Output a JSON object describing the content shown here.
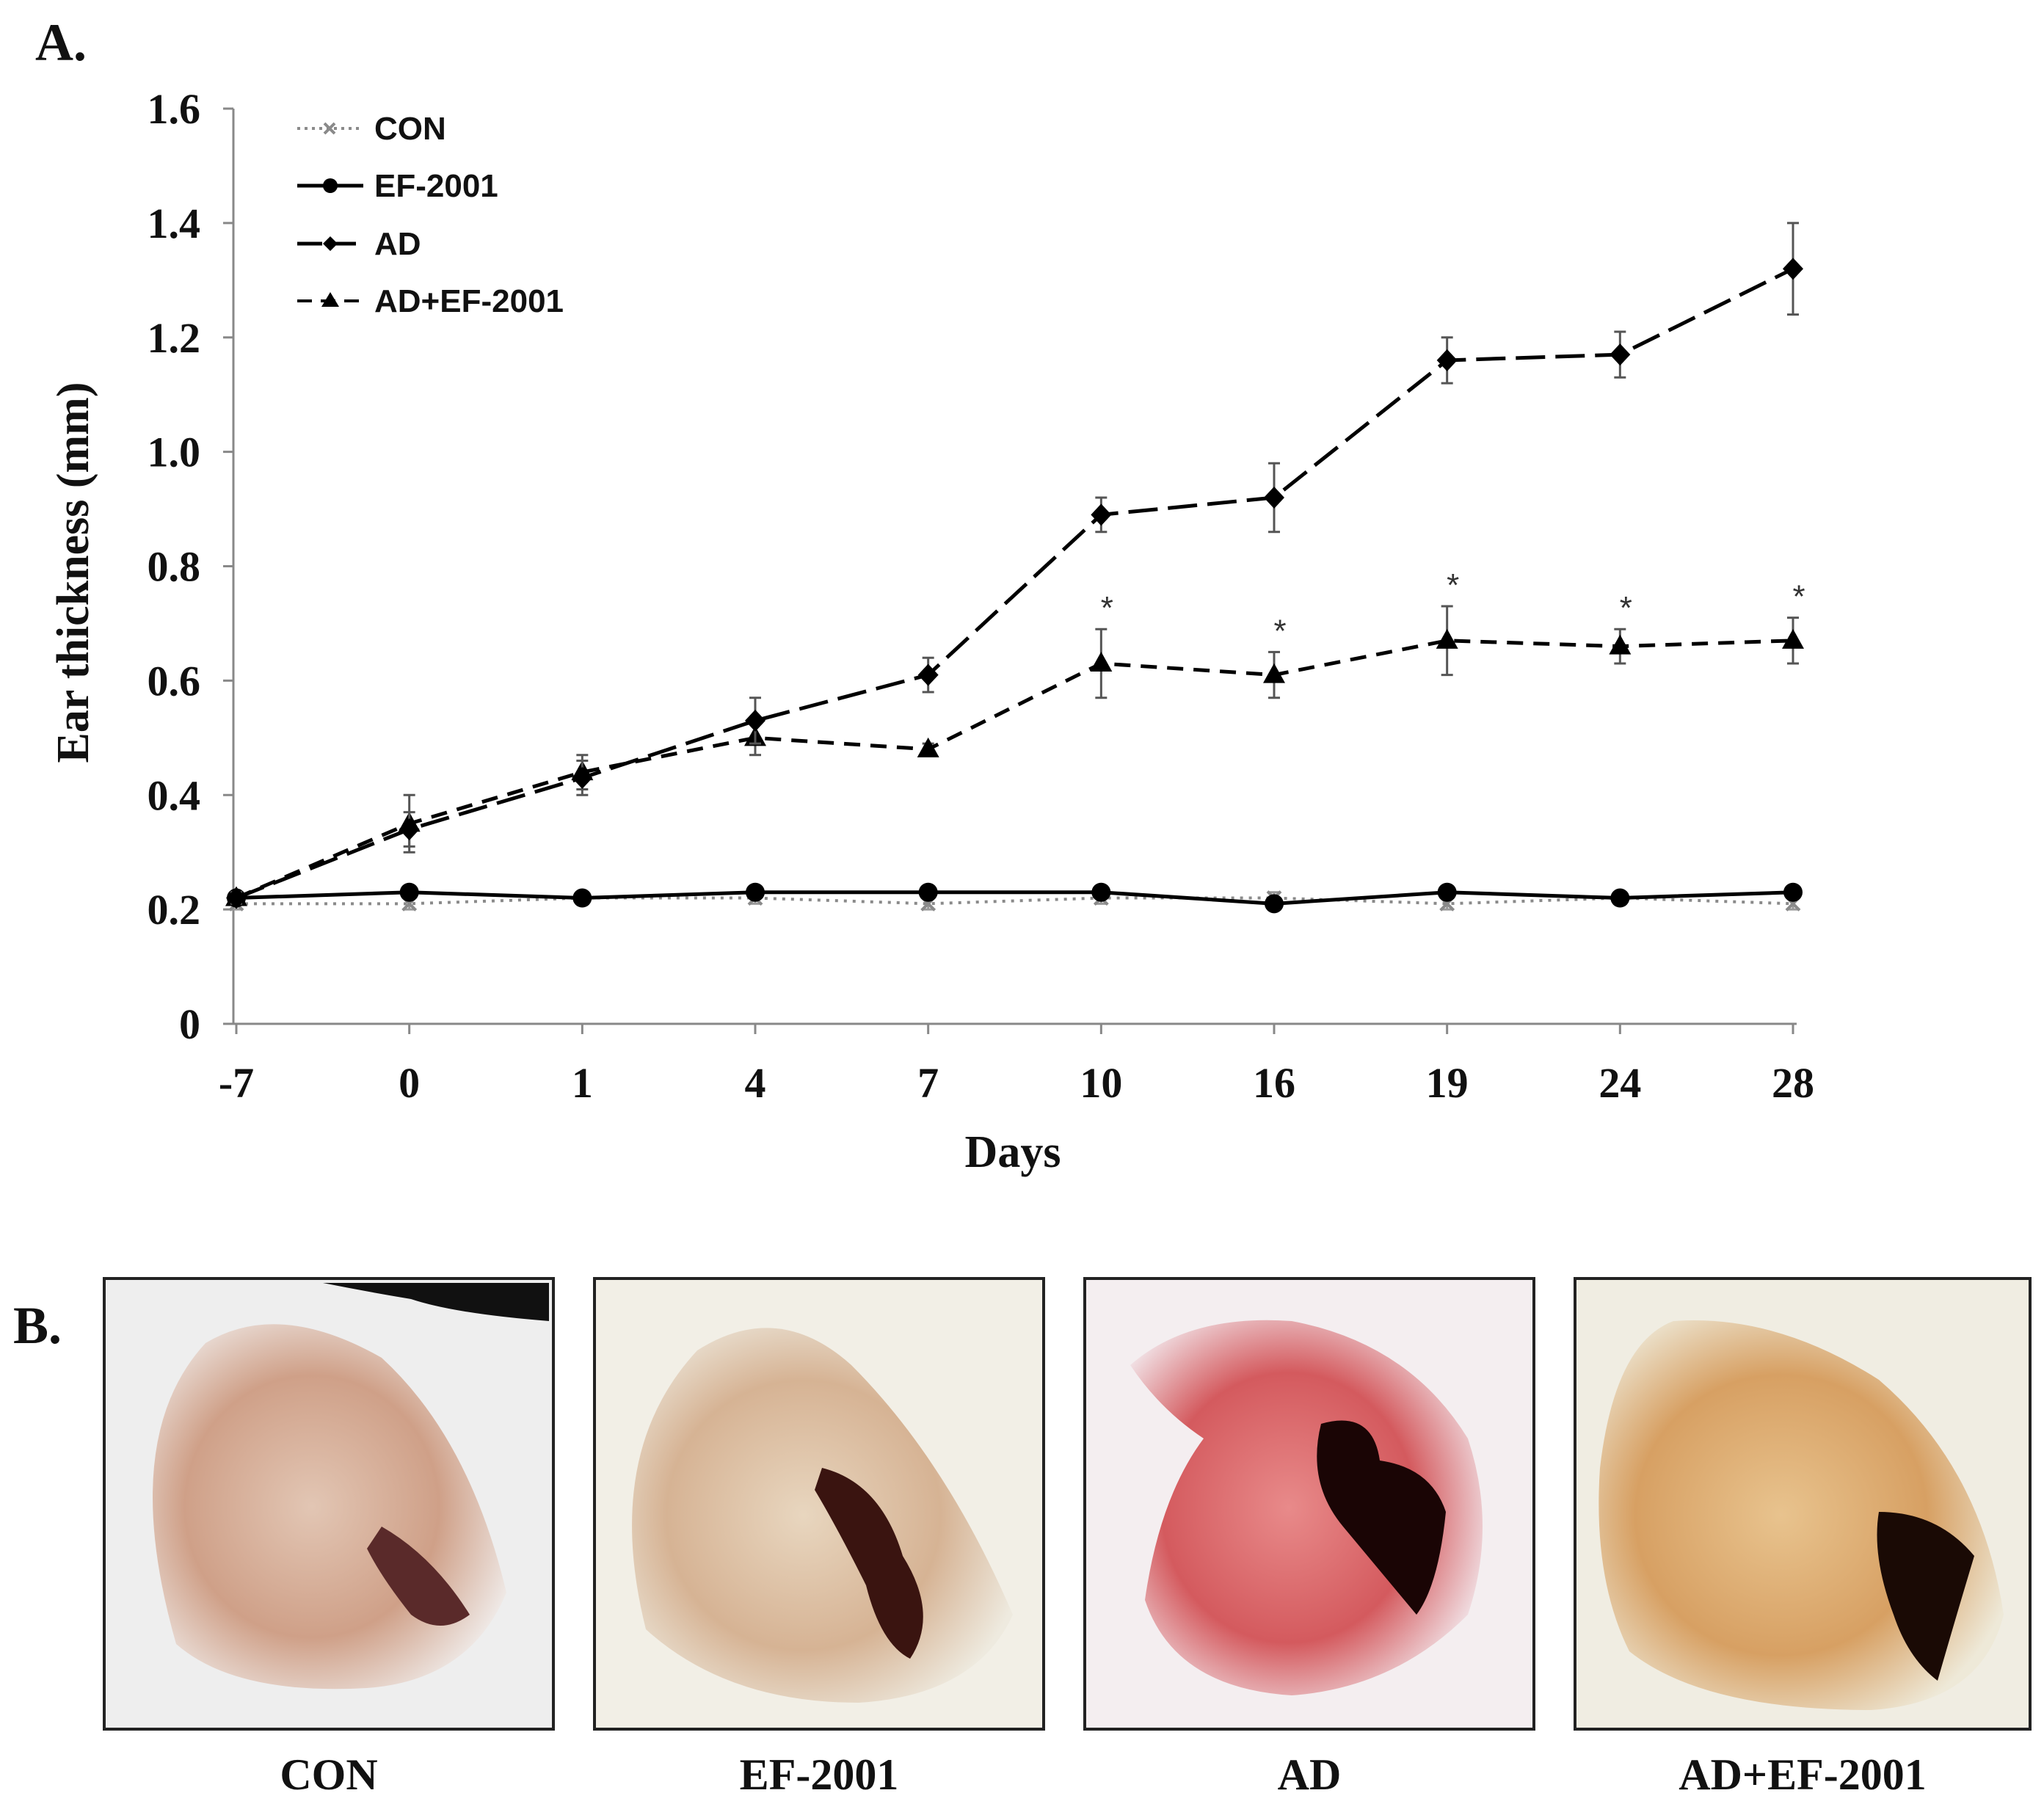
{
  "panel_a_label": "A.",
  "panel_b_label": "B.",
  "chart_data": {
    "type": "line",
    "title": "",
    "xlabel": "Days",
    "ylabel": "Ear thickness (mm)",
    "categories": [
      "-7",
      "0",
      "1",
      "4",
      "7",
      "10",
      "16",
      "19",
      "24",
      "28"
    ],
    "ylim": [
      0,
      1.6
    ],
    "yticks": [
      "0",
      "0.2",
      "0.4",
      "0.6",
      "0.8",
      "1.0",
      "1.2",
      "1.4",
      "1.6"
    ],
    "grid": false,
    "legend_position": "top-left",
    "series": [
      {
        "name": "CON",
        "values": [
          0.21,
          0.21,
          0.22,
          0.22,
          0.21,
          0.22,
          0.22,
          0.21,
          0.22,
          0.21
        ],
        "errors": [
          0.01,
          0.01,
          0.01,
          0.01,
          0.01,
          0.01,
          0.01,
          0.01,
          0.01,
          0.01
        ],
        "line": "dotted",
        "marker": "x",
        "color": "#8a8a8a"
      },
      {
        "name": "EF-2001",
        "values": [
          0.22,
          0.23,
          0.22,
          0.23,
          0.23,
          0.23,
          0.21,
          0.23,
          0.22,
          0.23
        ],
        "errors": [
          0.01,
          0.01,
          0.01,
          0.01,
          0.01,
          0.01,
          0.01,
          0.01,
          0.01,
          0.01
        ],
        "line": "solid",
        "marker": "circle",
        "color": "#000000"
      },
      {
        "name": "AD",
        "values": [
          0.22,
          0.34,
          0.43,
          0.53,
          0.61,
          0.89,
          0.92,
          1.16,
          1.17,
          1.32
        ],
        "errors": [
          0.01,
          0.03,
          0.03,
          0.04,
          0.03,
          0.03,
          0.06,
          0.04,
          0.04,
          0.08
        ],
        "line": "long-dash",
        "marker": "diamond",
        "color": "#000000"
      },
      {
        "name": "AD+EF-2001",
        "values": [
          0.22,
          0.35,
          0.44,
          0.5,
          0.48,
          0.63,
          0.61,
          0.67,
          0.66,
          0.67
        ],
        "errors": [
          0.01,
          0.05,
          0.03,
          0.03,
          0.01,
          0.06,
          0.04,
          0.06,
          0.03,
          0.04
        ],
        "line": "dashed",
        "marker": "triangle",
        "color": "#000000"
      }
    ],
    "significance": {
      "symbol": "*",
      "series": "AD+EF-2001",
      "categories": [
        "10",
        "16",
        "19",
        "24",
        "28"
      ]
    }
  },
  "photos": [
    {
      "caption": "CON",
      "tone": "#cfa088"
    },
    {
      "caption": "EF-2001",
      "tone": "#d6b394"
    },
    {
      "caption": "AD",
      "tone": "#d45a5e"
    },
    {
      "caption": "AD+EF-2001",
      "tone": "#d7a063"
    }
  ]
}
